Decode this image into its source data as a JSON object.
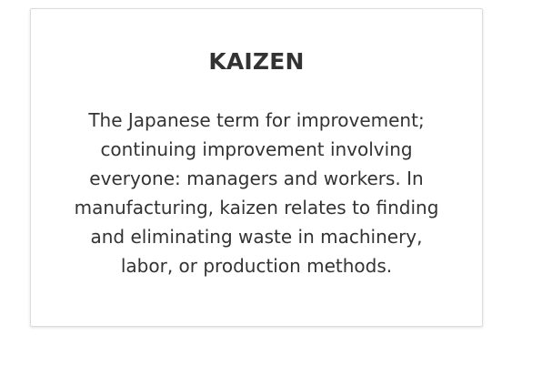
{
  "card": {
    "title": "KAIZEN",
    "definition": "The Japanese term for improvement; continuing improvement involving everyone: managers and workers. In manufacturing, kaizen relates to finding and eliminating waste in machinery, labor, or production methods."
  }
}
